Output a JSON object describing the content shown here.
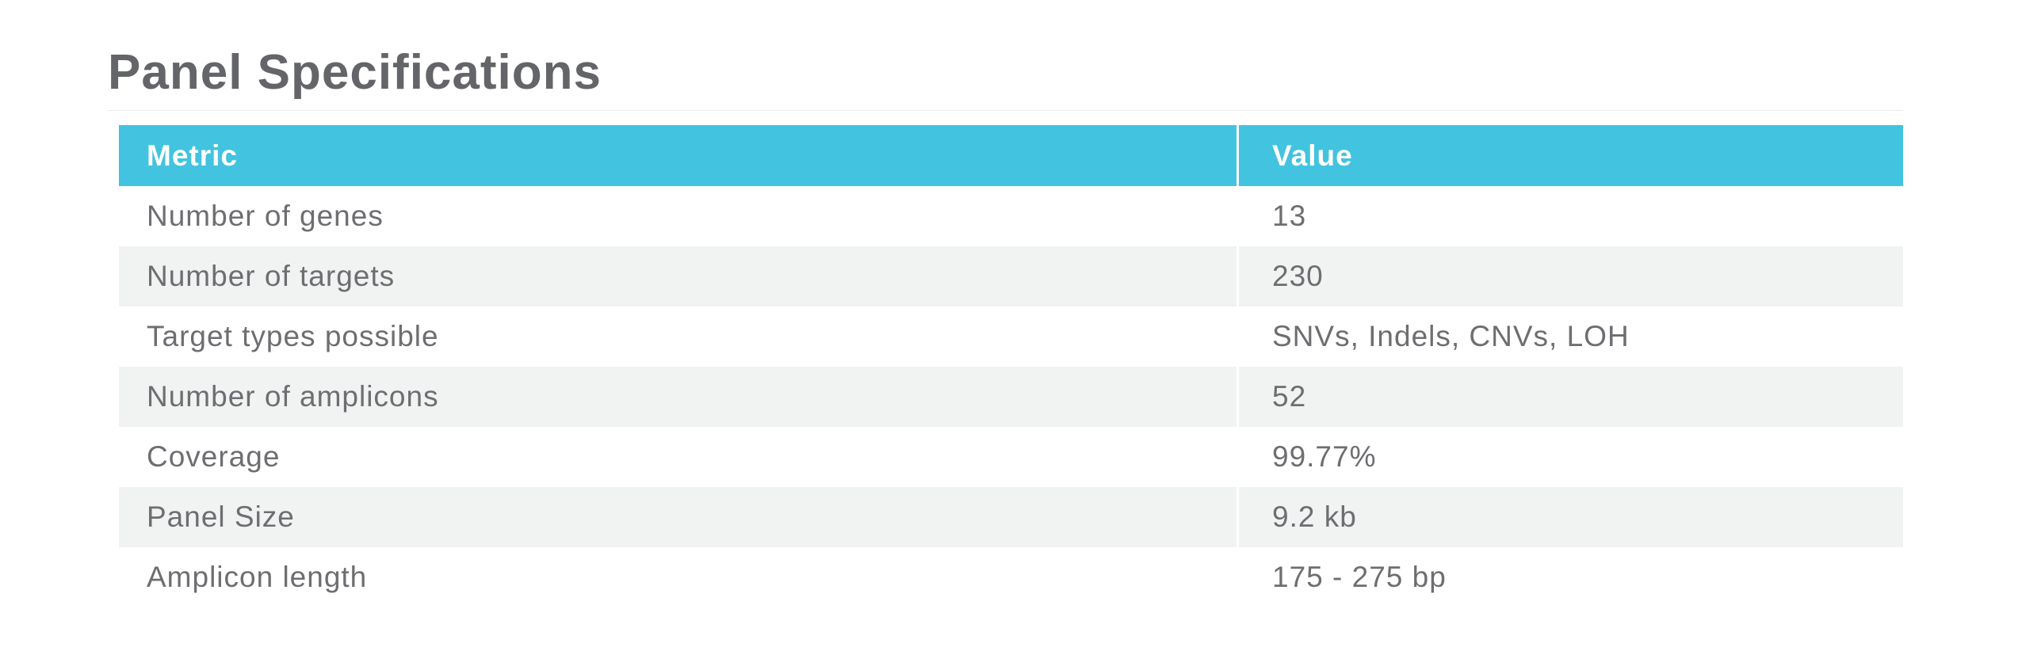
{
  "page": {
    "title": "Panel Specifications"
  },
  "table": {
    "columns": [
      "Metric",
      "Value"
    ],
    "rows": [
      {
        "metric": "Number of genes",
        "value": "13"
      },
      {
        "metric": "Number of targets",
        "value": "230"
      },
      {
        "metric": "Target types possible",
        "value": "SNVs, Indels, CNVs, LOH"
      },
      {
        "metric": "Number of amplicons",
        "value": "52"
      },
      {
        "metric": "Coverage",
        "value": "99.77%"
      },
      {
        "metric": "Panel Size",
        "value": "9.2 kb"
      },
      {
        "metric": "Amplicon length",
        "value": "175 - 275 bp"
      }
    ]
  },
  "colors": {
    "header_bg": "#42C3E0",
    "header_text": "#FFFFFF",
    "alt_row_bg": "#F1F2F2",
    "body_text": "#6D6E71",
    "title_text": "#646568"
  }
}
